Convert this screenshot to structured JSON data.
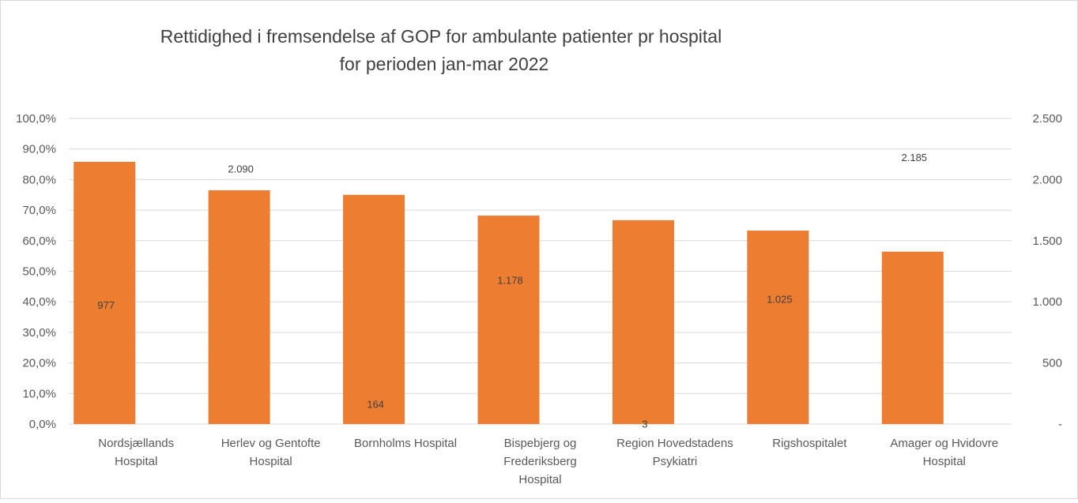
{
  "chart_data": {
    "type": "bar",
    "title": [
      "Rettidighed i fremsendelse  af GOP for ambulante patienter pr hospital",
      "for perioden jan-mar 2022"
    ],
    "categories": [
      [
        "Nordsjællands",
        "Hospital"
      ],
      [
        "Herlev og Gentofte",
        "Hospital"
      ],
      [
        "Bornholms Hospital"
      ],
      [
        "Bispebjerg og",
        "Frederiksberg",
        "Hospital"
      ],
      [
        "Region Hovedstadens",
        "Psykiatri"
      ],
      [
        "Rigshospitalet"
      ],
      [
        "Amager og Hvidovre",
        "Hospital"
      ]
    ],
    "series": [
      {
        "axis": "left",
        "color": "#ED7D31",
        "values": [
          85.8,
          76.5,
          75.0,
          68.2,
          66.7,
          63.3,
          56.4
        ]
      },
      {
        "axis": "right",
        "values": [
          977,
          2090,
          164,
          1178,
          3,
          1025,
          2185
        ],
        "labels": [
          "977",
          "2.090",
          "164",
          "1.178",
          "3",
          "1.025",
          "2.185"
        ]
      }
    ],
    "left_axis": {
      "range": [
        0,
        100
      ],
      "ticks": [
        "0,0%",
        "10,0%",
        "20,0%",
        "30,0%",
        "40,0%",
        "50,0%",
        "60,0%",
        "70,0%",
        "80,0%",
        "90,0%",
        "100,0%"
      ]
    },
    "right_axis": {
      "range": [
        0,
        2500
      ],
      "ticks": [
        "-",
        "500",
        "1.000",
        "1.500",
        "2.000",
        "2.500"
      ]
    },
    "grid": true,
    "legend": "none"
  }
}
